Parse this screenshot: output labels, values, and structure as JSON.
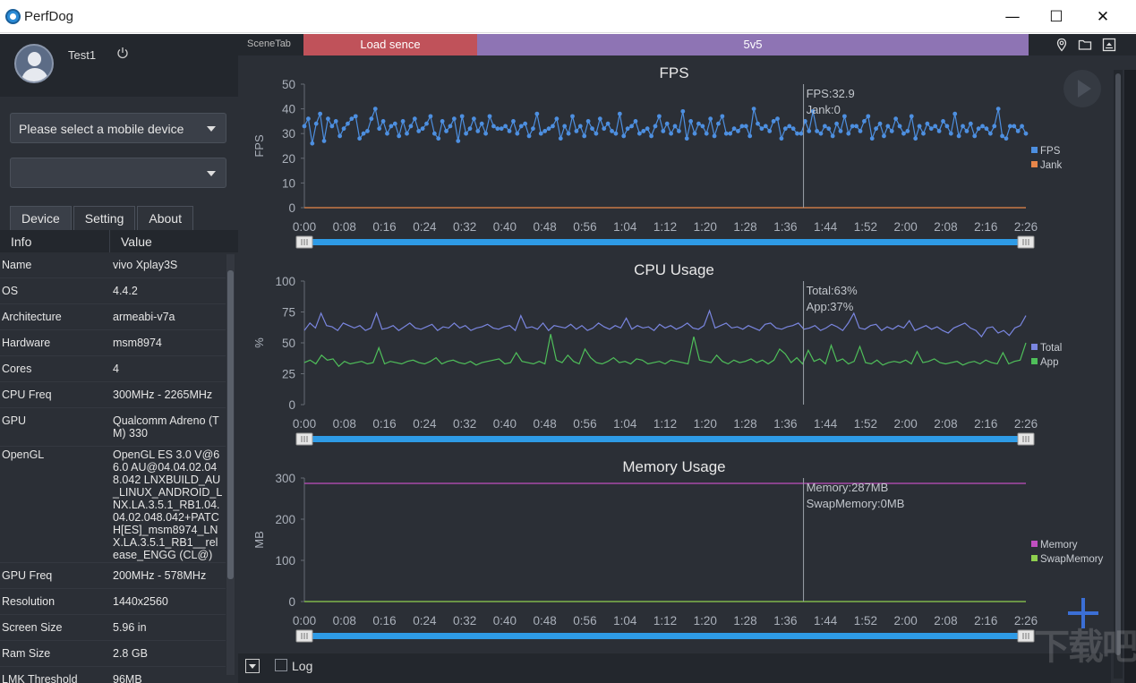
{
  "window": {
    "title": "PerfDog",
    "min": "—",
    "max": "☐",
    "close": "✕"
  },
  "user": {
    "name": "Test1"
  },
  "device_select": {
    "placeholder": "Please select a mobile device",
    "app_value": ""
  },
  "tabs": [
    {
      "label": "Device"
    },
    {
      "label": "Setting"
    },
    {
      "label": "About"
    }
  ],
  "info": {
    "headers": {
      "key": "Info",
      "value": "Value"
    },
    "rows": [
      {
        "k": "Name",
        "v": "vivo Xplay3S"
      },
      {
        "k": "OS",
        "v": "4.4.2"
      },
      {
        "k": "Architecture",
        "v": "armeabi-v7a"
      },
      {
        "k": "Hardware",
        "v": "msm8974"
      },
      {
        "k": "Cores",
        "v": "4"
      },
      {
        "k": "CPU Freq",
        "v": "300MHz - 2265MHz"
      },
      {
        "k": "GPU",
        "v": "Qualcomm Adreno (TM) 330"
      },
      {
        "k": "OpenGL",
        "v": "OpenGL ES 3.0 V@66.0 AU@04.04.02.048.042 LNXBUILD_AU_LINUX_ANDROID_LNX.LA.3.5.1_RB1.04.04.02.048.042+PATCH[ES]_msm8974_LNX.LA.3.5.1_RB1__release_ENGG (CL@)"
      },
      {
        "k": "GPU Freq",
        "v": "200MHz - 578MHz"
      },
      {
        "k": "Resolution",
        "v": "1440x2560"
      },
      {
        "k": "Screen Size",
        "v": "5.96 in"
      },
      {
        "k": "Ram Size",
        "v": "2.8 GB"
      },
      {
        "k": "LMK Threshold",
        "v": "96MB"
      }
    ]
  },
  "scenes": {
    "label": "SceneTab",
    "items": [
      {
        "label": "Load sence",
        "color": "#c0525a"
      },
      {
        "label": "5v5",
        "color": "#8e74b4"
      }
    ]
  },
  "bottom": {
    "log_label": "Log"
  },
  "watermark": "下载吧",
  "chart_data": [
    {
      "type": "line",
      "title": "FPS",
      "ylabel": "FPS",
      "ylim": [
        0,
        50
      ],
      "yticks": [
        0,
        10,
        20,
        30,
        40,
        50
      ],
      "xticks": [
        "0:00",
        "0:08",
        "0:16",
        "0:24",
        "0:32",
        "0:40",
        "0:48",
        "0:56",
        "1:04",
        "1:12",
        "1:20",
        "1:28",
        "1:36",
        "1:44",
        "1:52",
        "2:00",
        "2:08",
        "2:16",
        "2:26"
      ],
      "cursor": {
        "x": 101,
        "lines": [
          "FPS:32.9",
          "Jank:0"
        ]
      },
      "series": [
        {
          "name": "FPS",
          "color": "#4d8fe0",
          "markers": true,
          "values": [
            33,
            36,
            26,
            34,
            38,
            27,
            36,
            33,
            35,
            29,
            32,
            34,
            36,
            37,
            28,
            30,
            31,
            36,
            40,
            32,
            35,
            30,
            33,
            34,
            29,
            35,
            30,
            33,
            36,
            31,
            32,
            34,
            37,
            30,
            28,
            35,
            31,
            33,
            36,
            27,
            37,
            30,
            32,
            36,
            31,
            34,
            30,
            37,
            33,
            32,
            32,
            33,
            31,
            35,
            30,
            33,
            34,
            29,
            32,
            38,
            30,
            31,
            32,
            33,
            36,
            28,
            33,
            30,
            37,
            31,
            33,
            29,
            35,
            32,
            30,
            36,
            32,
            34,
            31,
            30,
            38,
            29,
            32,
            33,
            35,
            30,
            31,
            32,
            29,
            33,
            37,
            31,
            34,
            30,
            33,
            31,
            39,
            28,
            35,
            30,
            34,
            33,
            30,
            36,
            29,
            34,
            37,
            30,
            30,
            32,
            31,
            33,
            33,
            29,
            40,
            34,
            32,
            33,
            31,
            35,
            36,
            28,
            32,
            33,
            32,
            30,
            30,
            35,
            31,
            39,
            31,
            30,
            33,
            32,
            29,
            34,
            31,
            37,
            30,
            33,
            33,
            31,
            35,
            37,
            28,
            32,
            34,
            29,
            33,
            31,
            36,
            33,
            30,
            31,
            37,
            28,
            33,
            30,
            34,
            32,
            33,
            31,
            35,
            33,
            30,
            38,
            29,
            33,
            31,
            34,
            29,
            32,
            33,
            32,
            30,
            33,
            40,
            29,
            28,
            33,
            33,
            31,
            33,
            30
          ]
        },
        {
          "name": "Jank",
          "color": "#e8864a",
          "markers": false,
          "values": [
            0,
            0
          ]
        }
      ]
    },
    {
      "type": "line",
      "title": "CPU Usage",
      "ylabel": "%",
      "ylim": [
        0,
        100
      ],
      "yticks": [
        0,
        25,
        50,
        75,
        100
      ],
      "xticks": [
        "0:00",
        "0:08",
        "0:16",
        "0:24",
        "0:32",
        "0:40",
        "0:48",
        "0:56",
        "1:04",
        "1:12",
        "1:20",
        "1:28",
        "1:36",
        "1:44",
        "1:52",
        "2:00",
        "2:08",
        "2:16",
        "2:26"
      ],
      "cursor": {
        "x": 101,
        "lines": [
          "Total:63%",
          "App:37%"
        ]
      },
      "series": [
        {
          "name": "Total",
          "color": "#7a86e0",
          "markers": false,
          "values": [
            60,
            66,
            62,
            74,
            64,
            63,
            60,
            66,
            64,
            62,
            64,
            60,
            62,
            74,
            61,
            62,
            64,
            60,
            63,
            66,
            62,
            61,
            63,
            65,
            60,
            63,
            62,
            66,
            62,
            64,
            60,
            62,
            63,
            65,
            62,
            61,
            63,
            64,
            60,
            72,
            62,
            63,
            61,
            66,
            60,
            64,
            63,
            62,
            65,
            61,
            64,
            60,
            62,
            66,
            63,
            61,
            64,
            62,
            70,
            61,
            64,
            62,
            63,
            60,
            65,
            62,
            64,
            61,
            63,
            66,
            62,
            61,
            64,
            76,
            62,
            64,
            66,
            62,
            63,
            61,
            64,
            62,
            60,
            65,
            66,
            62,
            61,
            63,
            64,
            66,
            61,
            62,
            64,
            60,
            62,
            65,
            63,
            60,
            66,
            74,
            62,
            61,
            64,
            65,
            60,
            63,
            61,
            64,
            62,
            68,
            60,
            62,
            64,
            61,
            63,
            60,
            58,
            62,
            64,
            66,
            62,
            60,
            55,
            62,
            63,
            58,
            60,
            56,
            62,
            64,
            72
          ]
        },
        {
          "name": "App",
          "color": "#4fbf5a",
          "markers": false,
          "values": [
            34,
            36,
            33,
            40,
            36,
            37,
            31,
            35,
            33,
            34,
            35,
            33,
            34,
            46,
            33,
            35,
            34,
            33,
            35,
            36,
            34,
            33,
            35,
            38,
            33,
            35,
            36,
            34,
            33,
            35,
            32,
            34,
            35,
            36,
            37,
            33,
            34,
            42,
            35,
            34,
            33,
            35,
            33,
            57,
            36,
            34,
            40,
            35,
            33,
            45,
            38,
            34,
            33,
            35,
            38,
            34,
            35,
            33,
            37,
            36,
            33,
            34,
            35,
            33,
            36,
            35,
            34,
            33,
            55,
            36,
            35,
            34,
            40,
            35,
            33,
            36,
            34,
            35,
            37,
            34,
            36,
            33,
            36,
            45,
            41,
            34,
            38,
            33,
            44,
            35,
            37,
            33,
            48,
            35,
            37,
            33,
            35,
            47,
            34,
            33,
            36,
            32,
            34,
            35,
            34,
            36,
            33,
            43,
            34,
            35,
            37,
            34,
            33,
            34,
            35,
            32,
            34,
            35,
            33,
            36,
            34,
            33,
            42,
            33,
            35,
            36,
            50
          ]
        }
      ]
    },
    {
      "type": "line",
      "title": "Memory Usage",
      "ylabel": "MB",
      "ylim": [
        0,
        300
      ],
      "yticks": [
        0,
        100,
        200,
        300
      ],
      "xticks": [
        "0:00",
        "0:08",
        "0:16",
        "0:24",
        "0:32",
        "0:40",
        "0:48",
        "0:56",
        "1:04",
        "1:12",
        "1:20",
        "1:28",
        "1:36",
        "1:44",
        "1:52",
        "2:00",
        "2:08",
        "2:16",
        "2:26"
      ],
      "cursor": {
        "x": 101,
        "lines": [
          "Memory:287MB",
          "SwapMemory:0MB"
        ]
      },
      "series": [
        {
          "name": "Memory",
          "color": "#c04fc0",
          "markers": false,
          "values": [
            287,
            287
          ]
        },
        {
          "name": "SwapMemory",
          "color": "#8fd04f",
          "markers": false,
          "values": [
            0,
            0
          ]
        }
      ]
    }
  ]
}
